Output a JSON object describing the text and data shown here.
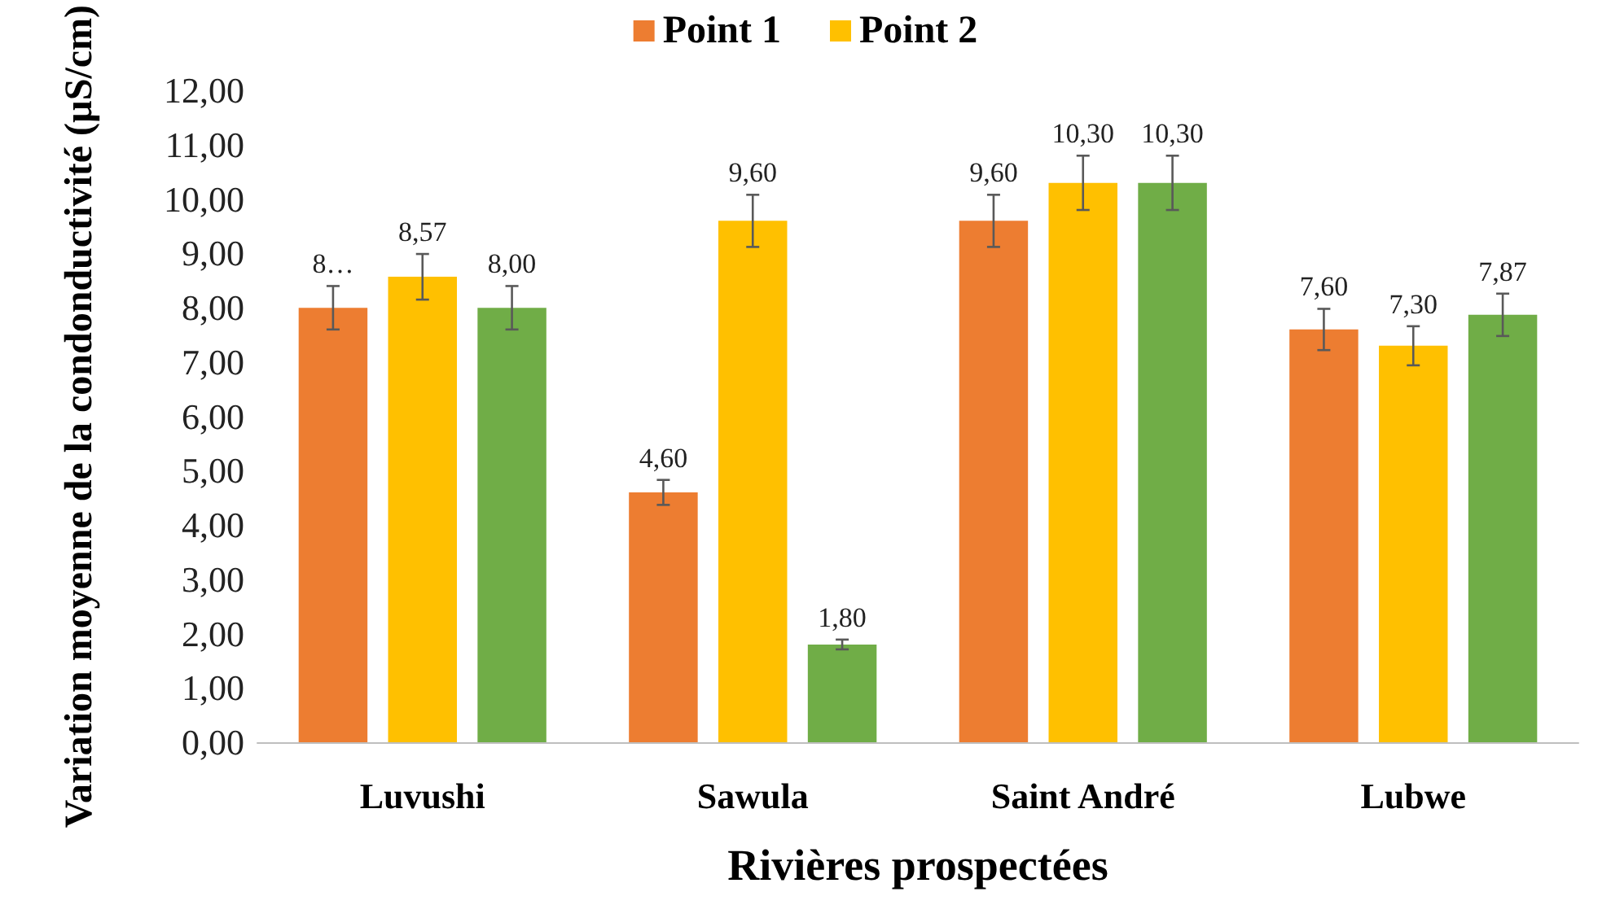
{
  "chart_data": {
    "type": "bar",
    "xlabel": "Rivières prospectées",
    "ylabel": "Variation moyenne de la condonductivité (µS/cm)",
    "categories": [
      "Luvushi",
      "Sawula",
      "Saint André",
      "Lubwe"
    ],
    "series": [
      {
        "name": "Point 1",
        "color": "#ed7d31",
        "values": [
          8.0,
          4.6,
          9.6,
          7.6
        ],
        "errors": [
          0.4,
          0.23,
          0.48,
          0.38
        ],
        "value_labels": [
          "8…",
          "4,60",
          "9,60",
          "7,60"
        ]
      },
      {
        "name": "Point 2",
        "color": "#ffc000",
        "values": [
          8.57,
          9.6,
          10.3,
          7.3
        ],
        "errors": [
          0.42,
          0.48,
          0.5,
          0.36
        ],
        "value_labels": [
          "8,57",
          "9,60",
          "10,30",
          "7,30"
        ]
      },
      {
        "color": "#70ad47",
        "values": [
          8.0,
          1.8,
          10.3,
          7.87
        ],
        "errors": [
          0.4,
          0.09,
          0.5,
          0.39
        ],
        "value_labels": [
          "8,00",
          "1,80",
          "10,30",
          "7,87"
        ]
      }
    ],
    "ylim": [
      0,
      12
    ],
    "yticks": [
      {
        "value": 0,
        "label": "0,00"
      },
      {
        "value": 1,
        "label": "1,00"
      },
      {
        "value": 2,
        "label": "2,00"
      },
      {
        "value": 3,
        "label": "3,00"
      },
      {
        "value": 4,
        "label": "4,00"
      },
      {
        "value": 5,
        "label": "5,00"
      },
      {
        "value": 6,
        "label": "6,00"
      },
      {
        "value": 7,
        "label": "7,00"
      },
      {
        "value": 8,
        "label": "8,00"
      },
      {
        "value": 9,
        "label": "9,00"
      },
      {
        "value": 10,
        "label": "10,00"
      },
      {
        "value": 11,
        "label": "11,00"
      },
      {
        "value": 12,
        "label": "12,00"
      }
    ],
    "grid": false,
    "legend": "top"
  }
}
